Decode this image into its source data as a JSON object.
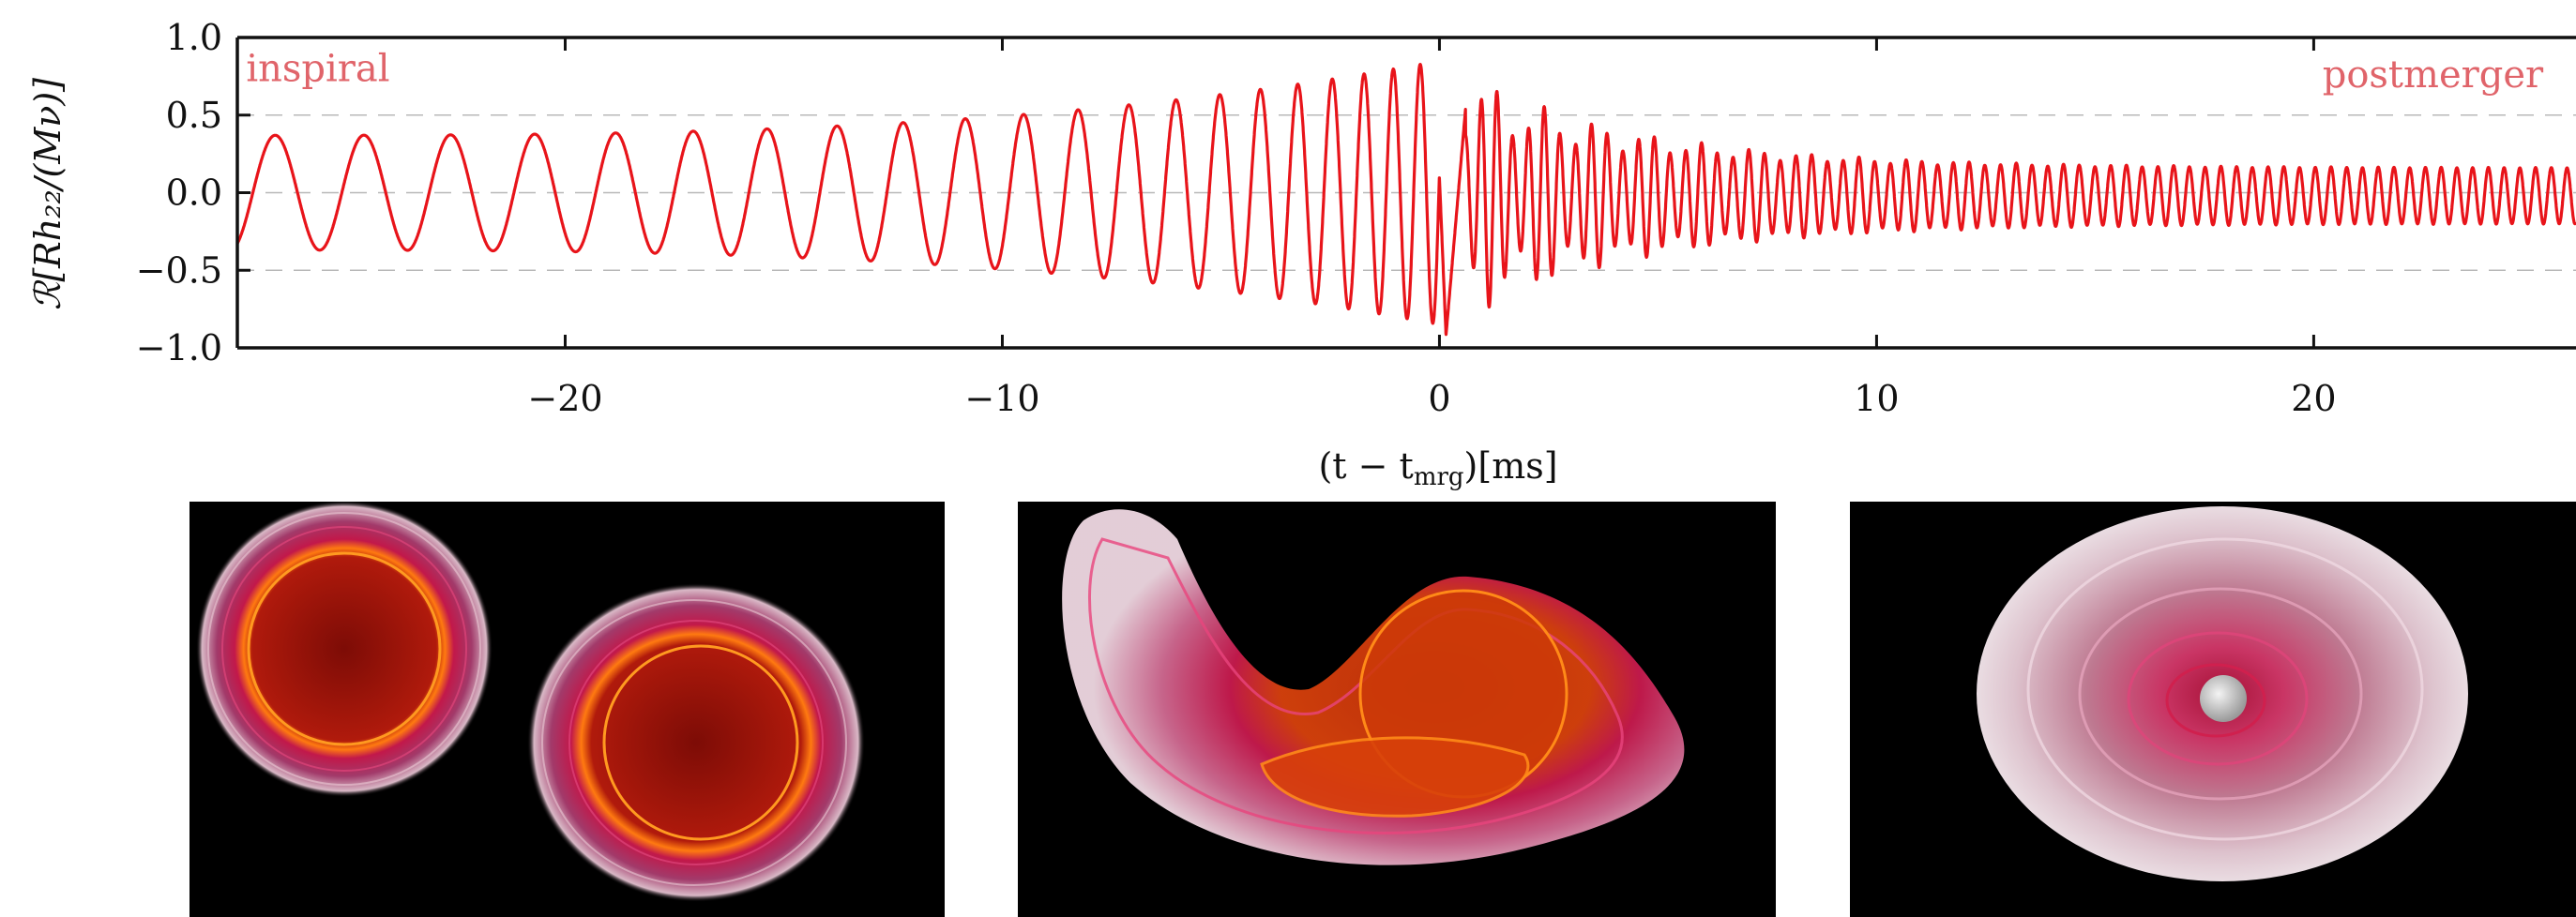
{
  "chart_data": {
    "type": "line",
    "xlabel": "(t − t",
    "xlabel_sub": "mrg",
    "xlabel_tail": ")[ms]",
    "ylabel": "ℛ[Rh₂₂/(Mν)]",
    "xlim": [
      -27.5,
      26.0
    ],
    "ylim": [
      -1.0,
      1.0
    ],
    "x_ticks": [
      -20,
      -10,
      0,
      10,
      20
    ],
    "x_tick_labels": [
      "−20",
      "−10",
      "0",
      "10",
      "20"
    ],
    "y_ticks": [
      1.0,
      0.5,
      0.0,
      -0.5,
      -1.0
    ],
    "y_tick_labels": [
      "1.0",
      "0.5",
      "0.0",
      "−0.5",
      "−1.0"
    ],
    "grid": "horizontal dashed",
    "annotations": [
      {
        "text": "inspiral",
        "x": -27.3,
        "y": 0.72
      },
      {
        "text": "postmerger",
        "x": 20.2,
        "y": 0.68
      }
    ],
    "series": [
      {
        "color": "#e8141a",
        "segments": [
          {
            "phase": "inspiral",
            "t_start": -27.5,
            "t_end": 0.0,
            "amp_start": 0.37,
            "amp_end": 0.85,
            "period_start": 2.05,
            "period_end": 0.55
          },
          {
            "phase": "merger",
            "t_start": 0.0,
            "t_end": 0.6,
            "min_amp": -0.92
          },
          {
            "phase": "postmerger",
            "t_start": 0.6,
            "t_end": 26.0,
            "amp_start": 0.6,
            "amp_end": 0.18,
            "period": 0.36
          }
        ]
      }
    ]
  },
  "colors": {
    "waveform": "#e8141a",
    "annotation": "#e0646a",
    "panel_background": "#000000"
  },
  "panels": [
    {
      "name": "inspiral-snapshot"
    },
    {
      "name": "merger-snapshot"
    },
    {
      "name": "postmerger-snapshot"
    }
  ]
}
